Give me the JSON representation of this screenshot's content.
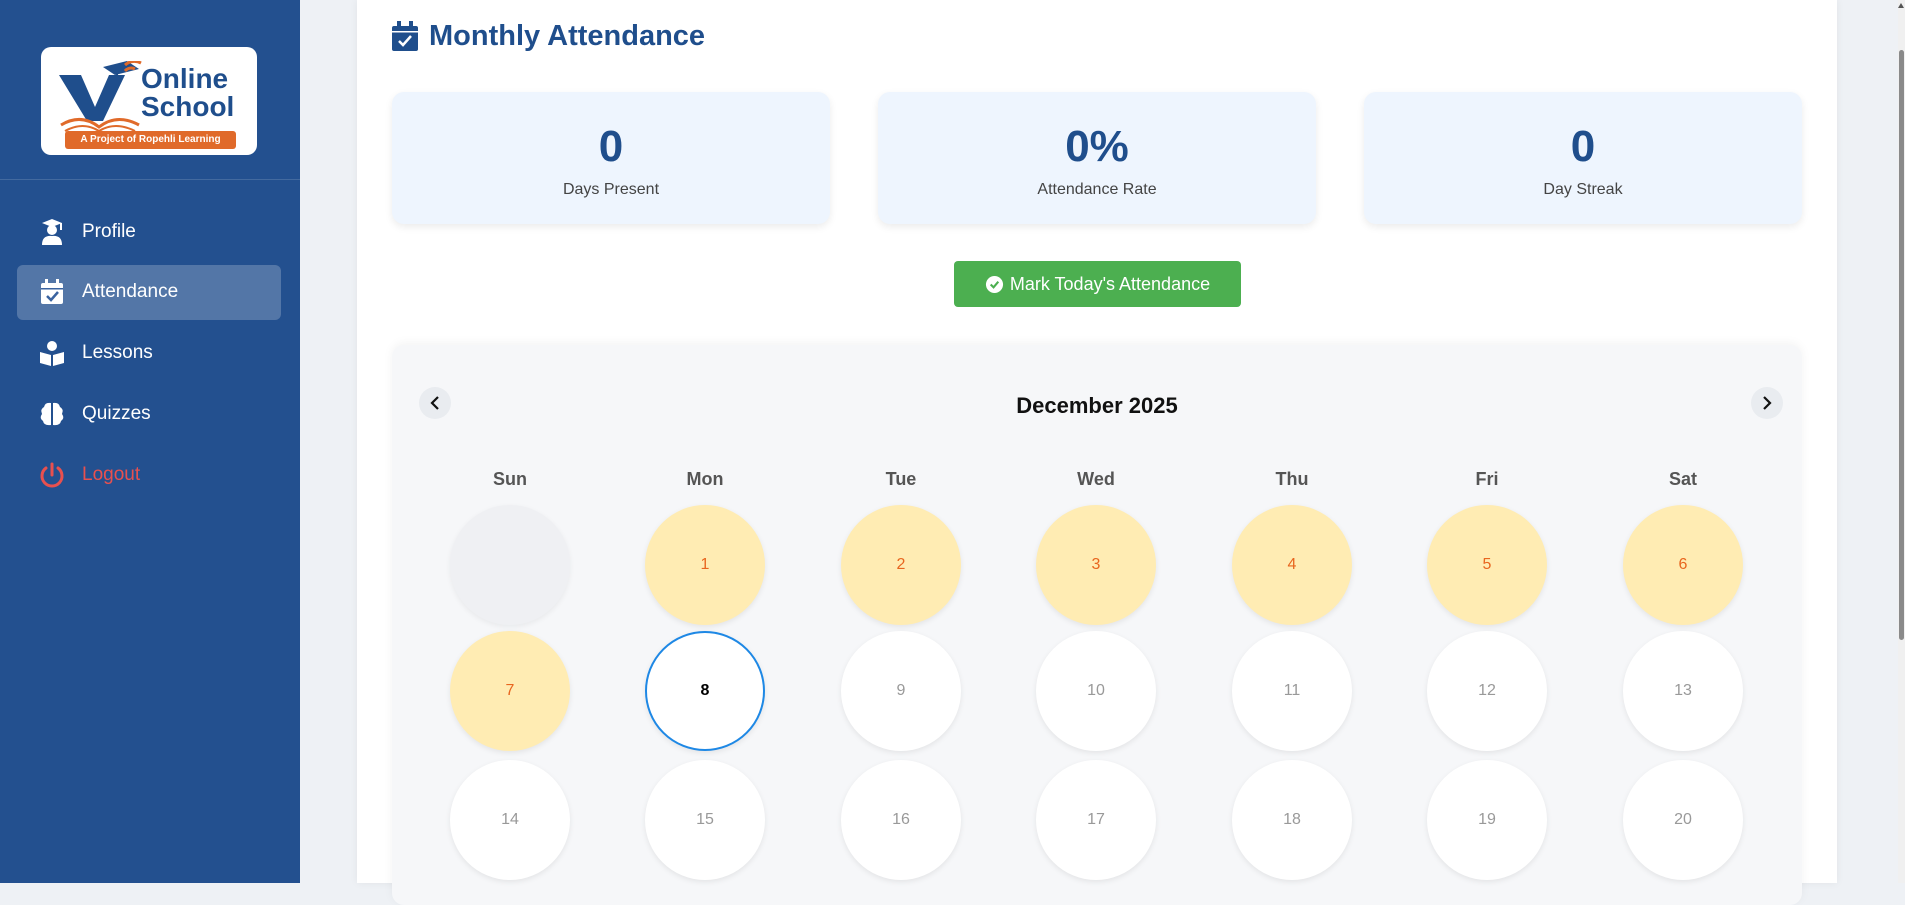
{
  "logo": {
    "line1": "Online",
    "line2": "School",
    "tagline": "A Project of Ropehli Learning"
  },
  "nav": {
    "items": [
      {
        "label": "Profile",
        "icon": "student-icon"
      },
      {
        "label": "Attendance",
        "icon": "calendar-check-icon",
        "active": true
      },
      {
        "label": "Lessons",
        "icon": "book-reader-icon"
      },
      {
        "label": "Quizzes",
        "icon": "brain-icon"
      },
      {
        "label": "Logout",
        "icon": "power-icon"
      }
    ]
  },
  "page": {
    "title": "Monthly Attendance"
  },
  "stats": [
    {
      "value": "0",
      "label": "Days Present"
    },
    {
      "value": "0%",
      "label": "Attendance Rate"
    },
    {
      "value": "0",
      "label": "Day Streak"
    }
  ],
  "mark_button": {
    "label": "Mark Today's Attendance"
  },
  "calendar": {
    "month_label": "December 2025",
    "weekdays": [
      "Sun",
      "Mon",
      "Tue",
      "Wed",
      "Thu",
      "Fri",
      "Sat"
    ],
    "rows": [
      [
        "",
        "1",
        "2",
        "3",
        "4",
        "5",
        "6"
      ],
      [
        "7",
        "8",
        "9",
        "10",
        "11",
        "12",
        "13"
      ],
      [
        "14",
        "15",
        "16",
        "17",
        "18",
        "19",
        "20"
      ]
    ],
    "today": "8"
  },
  "colors": {
    "sidebar": "#23508f",
    "accent": "#1f4e8c",
    "missed_bg": "#ffecb3",
    "missed_text": "#e8661f",
    "button": "#4caf50",
    "logout": "#e8504f",
    "today_border": "#1e88e5"
  }
}
